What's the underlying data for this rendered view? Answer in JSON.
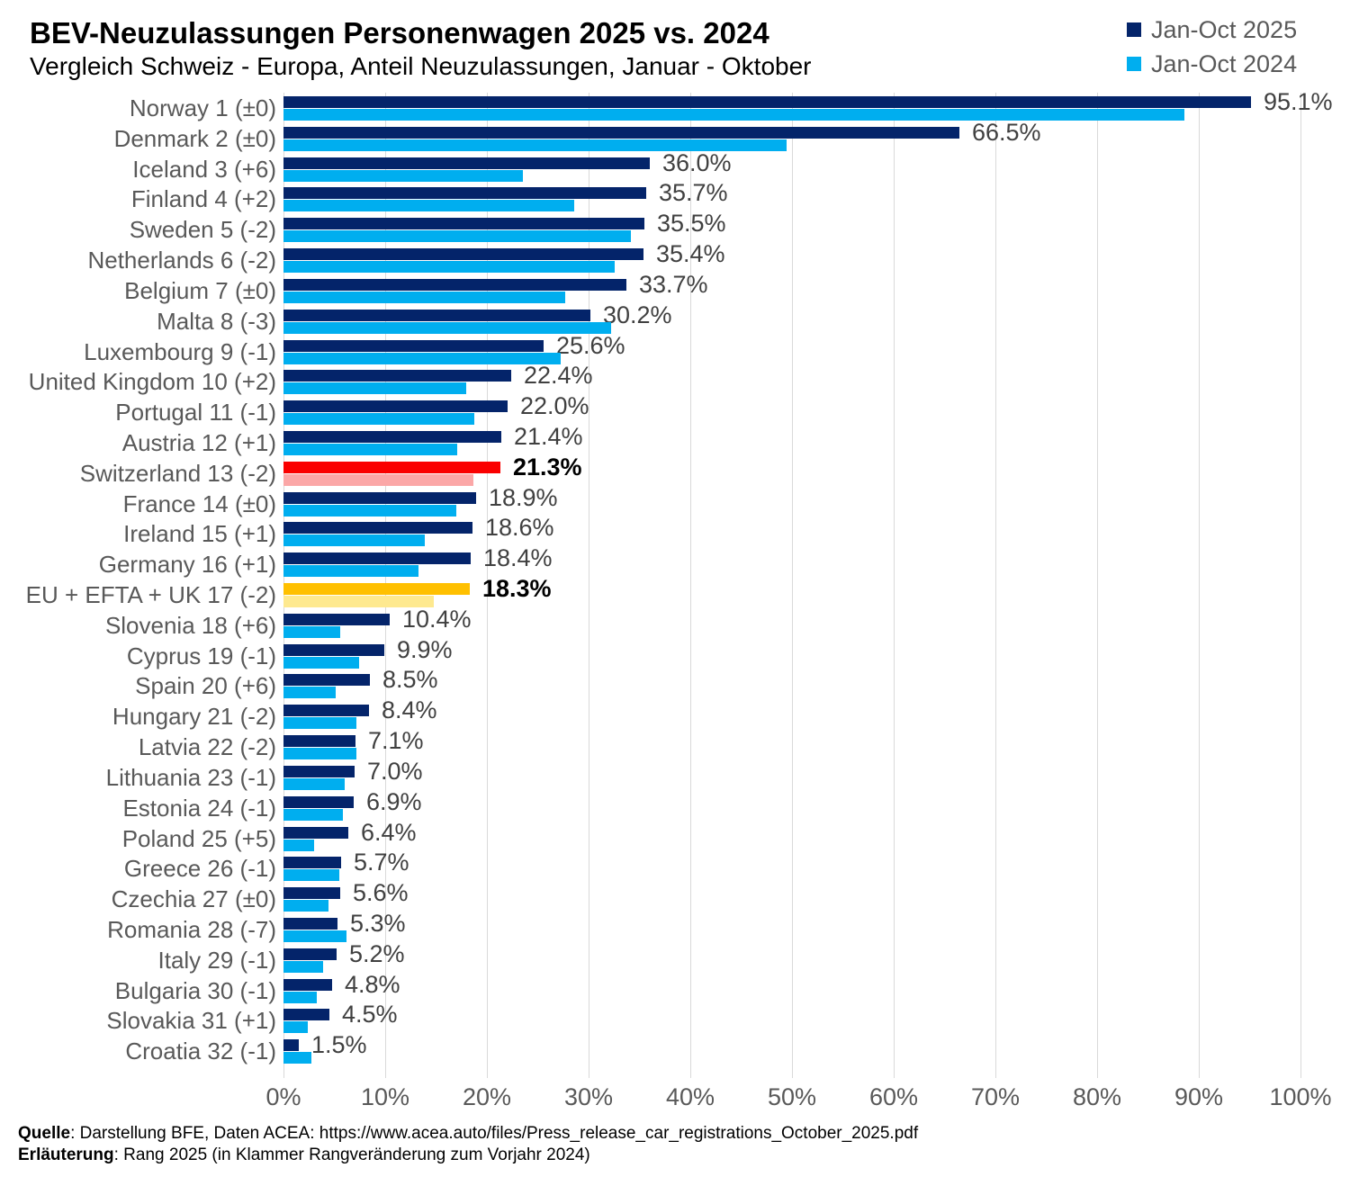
{
  "header": {
    "title": "BEV-Neuzulassungen Personenwagen 2025 vs. 2024",
    "subtitle": "Vergleich Schweiz - Europa, Anteil Neuzulassungen, Januar - Oktober"
  },
  "legend": [
    {
      "label": "Jan-Oct 2025",
      "color": "#04246A"
    },
    {
      "label": "Jan-Oct 2024",
      "color": "#00AEEF"
    }
  ],
  "colors": {
    "series_2025": "#04246A",
    "series_2024": "#00AEEF",
    "switzerland_2025": "#FA0000",
    "switzerland_2024": "#FBA7A7",
    "eu_2025": "#FFC000",
    "eu_2024": "#FEE98F",
    "gridline": "#D9D9D9",
    "axis_text": "#595959",
    "value_text": "#404040"
  },
  "chart_data": {
    "type": "bar",
    "orientation": "horizontal",
    "title": "BEV-Neuzulassungen Personenwagen 2025 vs. 2024",
    "subtitle": "Vergleich Schweiz - Europa, Anteil Neuzulassungen, Januar - Oktober",
    "xlabel": "",
    "ylabel": "",
    "x_axis": {
      "min": 0,
      "max": 100,
      "tick_step": 10,
      "grid": true,
      "tick_labels": [
        "0%",
        "10%",
        "20%",
        "30%",
        "40%",
        "50%",
        "60%",
        "70%",
        "80%",
        "90%",
        "100%"
      ]
    },
    "legend_position": "top-right",
    "value_labels_shown_for": "Jan-Oct 2025",
    "categories": [
      "Norway 1 (±0)",
      "Denmark 2 (±0)",
      "Iceland 3 (+6)",
      "Finland 4 (+2)",
      "Sweden 5 (-2)",
      "Netherlands 6 (-2)",
      "Belgium 7 (±0)",
      "Malta 8 (-3)",
      "Luxembourg 9 (-1)",
      "United Kingdom 10 (+2)",
      "Portugal 11 (-1)",
      "Austria 12 (+1)",
      "Switzerland 13 (-2)",
      "France 14 (±0)",
      "Ireland 15 (+1)",
      "Germany 16 (+1)",
      "EU + EFTA + UK 17 (-2)",
      "Slovenia 18 (+6)",
      "Cyprus 19 (-1)",
      "Spain 20 (+6)",
      "Hungary 21 (-2)",
      "Latvia 22 (-2)",
      "Lithuania 23 (-1)",
      "Estonia 24 (-1)",
      "Poland 25 (+5)",
      "Greece 26 (-1)",
      "Czechia 27 (±0)",
      "Romania 28 (-7)",
      "Italy 29 (-1)",
      "Bulgaria 30 (-1)",
      "Slovakia 31 (+1)",
      "Croatia 32 (-1)"
    ],
    "series": [
      {
        "name": "Jan-Oct 2025",
        "color": "#04246A",
        "values": [
          95.1,
          66.5,
          36.0,
          35.7,
          35.5,
          35.4,
          33.7,
          30.2,
          25.6,
          22.4,
          22.0,
          21.4,
          21.3,
          18.9,
          18.6,
          18.4,
          18.3,
          10.4,
          9.9,
          8.5,
          8.4,
          7.1,
          7.0,
          6.9,
          6.4,
          5.7,
          5.6,
          5.3,
          5.2,
          4.8,
          4.5,
          1.5
        ],
        "data_labels": [
          "95.1%",
          "66.5%",
          "36.0%",
          "35.7%",
          "35.5%",
          "35.4%",
          "33.7%",
          "30.2%",
          "25.6%",
          "22.4%",
          "22.0%",
          "21.4%",
          "21.3%",
          "18.9%",
          "18.6%",
          "18.4%",
          "18.3%",
          "10.4%",
          "9.9%",
          "8.5%",
          "8.4%",
          "7.1%",
          "7.0%",
          "6.9%",
          "6.4%",
          "5.7%",
          "5.6%",
          "5.3%",
          "5.2%",
          "4.8%",
          "4.5%",
          "1.5%"
        ]
      },
      {
        "name": "Jan-Oct 2024",
        "color": "#00AEEF",
        "values_estimated_from_bar_lengths": true,
        "values": [
          88.6,
          49.5,
          23.5,
          28.6,
          34.2,
          32.6,
          27.7,
          32.2,
          27.3,
          18.0,
          18.8,
          17.1,
          18.7,
          17.0,
          13.9,
          13.3,
          14.8,
          5.6,
          7.4,
          5.1,
          7.2,
          7.2,
          6.0,
          5.8,
          3.0,
          5.5,
          4.4,
          6.2,
          3.9,
          3.3,
          2.4,
          2.7
        ]
      }
    ],
    "highlights": [
      {
        "index": 12,
        "category": "Switzerland 13 (-2)",
        "bar_2025": "#FA0000",
        "bar_2024": "#FBA7A7",
        "label_bold": true
      },
      {
        "index": 16,
        "category": "EU + EFTA + UK 17 (-2)",
        "bar_2025": "#FFC000",
        "bar_2024": "#FEE98F",
        "label_bold": true
      }
    ]
  },
  "footer": {
    "source_label": "Quelle",
    "source_rest": ": Darstellung BFE, Daten ACEA: https://www.acea.auto/files/Press_release_car_registrations_October_2025.pdf",
    "note_label": "Erläuterung",
    "note_rest": ": Rang 2025 (in Klammer Rangveränderung zum Vorjahr 2024)"
  }
}
